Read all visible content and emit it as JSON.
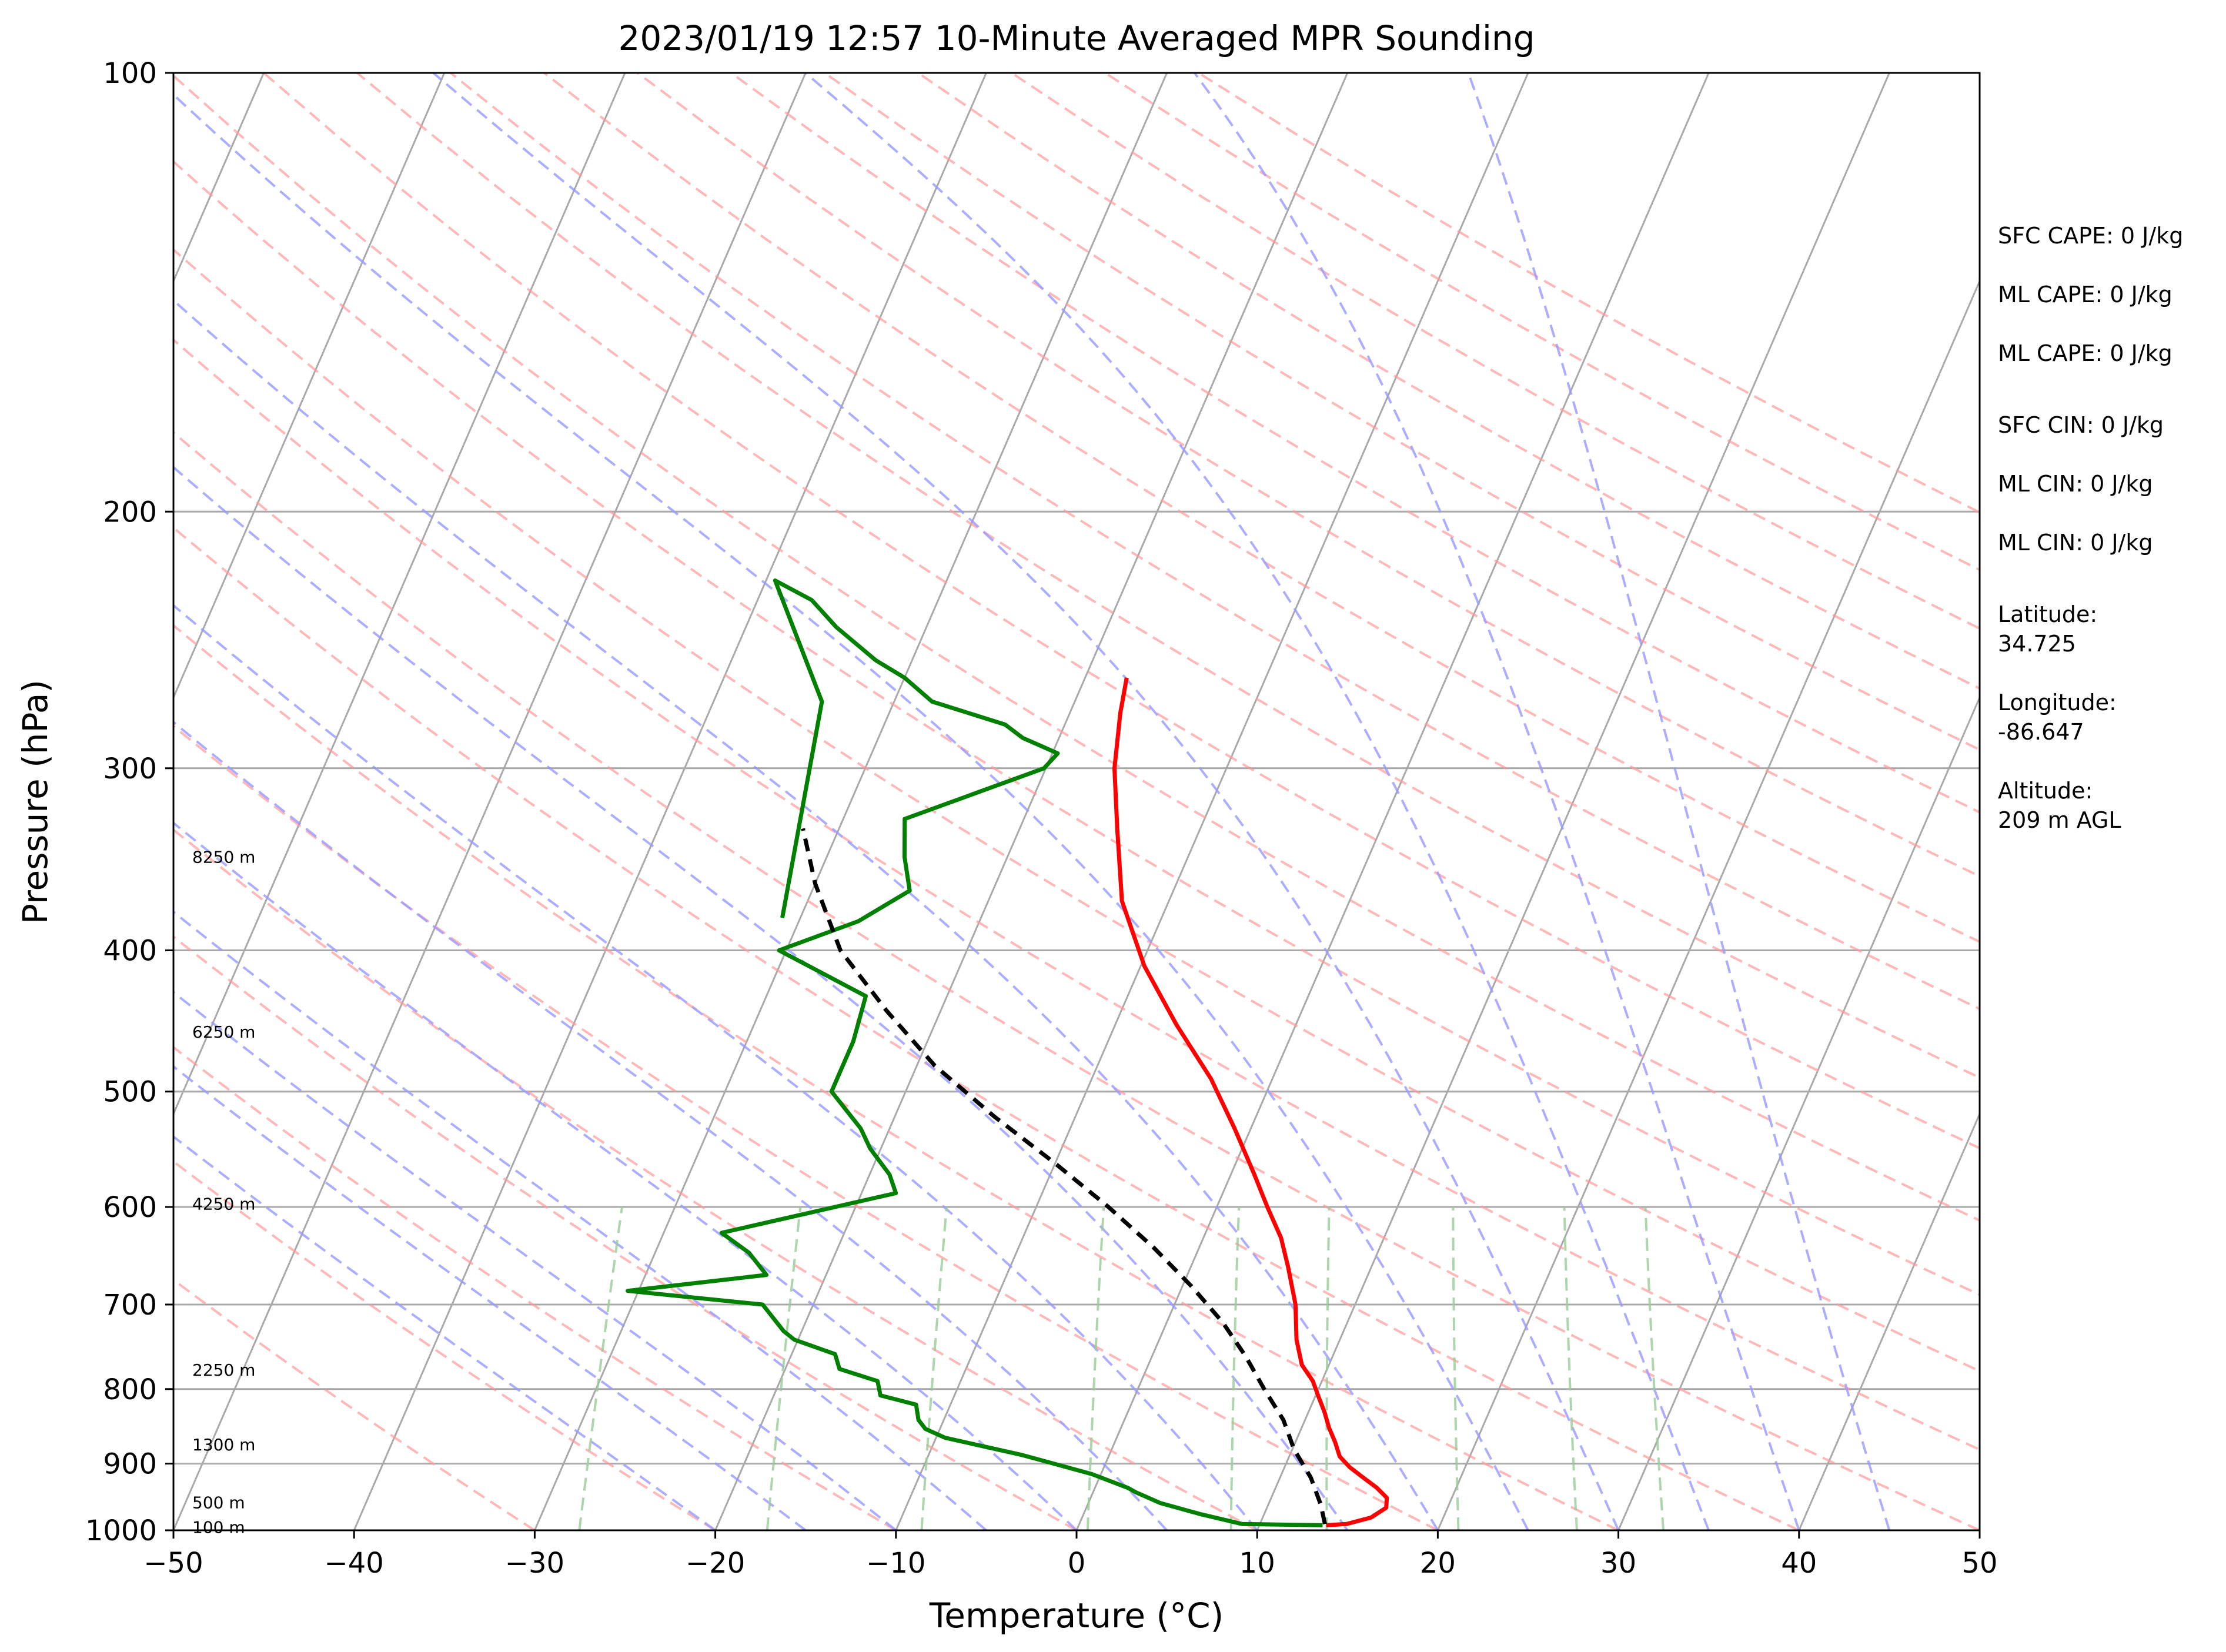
{
  "chart_data": {
    "type": "line",
    "subtype": "skew-t",
    "title": "2023/01/19 12:57 10-Minute Averaged MPR Sounding",
    "xlabel": "Temperature (°C)",
    "ylabel": "Pressure (hPa)",
    "xlim": [
      -50,
      50
    ],
    "ylim": [
      1000,
      100
    ],
    "y_scale": "log",
    "x_ticks": [
      "−50",
      "−40",
      "−30",
      "−20",
      "−10",
      "0",
      "10",
      "20",
      "30",
      "40",
      "50"
    ],
    "x_tick_values": [
      -50,
      -40,
      -30,
      -20,
      -10,
      0,
      10,
      20,
      30,
      40,
      50
    ],
    "y_ticks": [
      "100",
      "200",
      "300",
      "400",
      "500",
      "600",
      "700",
      "800",
      "900",
      "1000"
    ],
    "y_tick_values": [
      100,
      200,
      300,
      400,
      500,
      600,
      700,
      800,
      900,
      1000
    ],
    "grid": true,
    "height_labels": [
      {
        "label": "8250 m",
        "p": 345
      },
      {
        "label": "6250 m",
        "p": 455
      },
      {
        "label": "4250 m",
        "p": 597
      },
      {
        "label": "2250 m",
        "p": 776
      },
      {
        "label": "1300 m",
        "p": 873
      },
      {
        "label": "500 m",
        "p": 957
      },
      {
        "label": "100 m",
        "p": 995
      }
    ],
    "series": [
      {
        "color": "#ff0000",
        "linestyle": "solid",
        "x": [
          13.7,
          14.8,
          16.0,
          16.6,
          16.4,
          15.6,
          14.6,
          13.6,
          12.8,
          12.2,
          11.5,
          10.9,
          10.2,
          9.5,
          8.5,
          7.6,
          6.7,
          5.4,
          4.3,
          2.8,
          1.3,
          -0.9,
          -3.4,
          -6.6,
          -9.8,
          -12.6,
          -14.6,
          -16.2,
          -17.2,
          -17.7
        ],
        "y": [
          992,
          990,
          980,
          965,
          950,
          935,
          920,
          905,
          890,
          870,
          850,
          830,
          810,
          790,
          770,
          740,
          700,
          660,
          630,
          600,
          570,
          530,
          490,
          450,
          410,
          370,
          330,
          300,
          275,
          260
        ]
      },
      {
        "color": "#008000",
        "linestyle": "solid",
        "x": [
          13.5,
          9.0,
          6.5,
          4.0,
          2.4,
          1.8,
          -0.5,
          -4.8,
          -9.5,
          -10.8,
          -11.4,
          -11.9,
          -14.1,
          -14.6,
          -17.0,
          -17.6,
          -20.2,
          -21.0,
          -22.8,
          -30.6,
          -23.3,
          -24.8,
          -26.8,
          -18.1,
          -18.9,
          -20.6,
          -21.6,
          -24.1,
          -24.1,
          -24.5,
          -30.4,
          -26.7,
          -24.6,
          -25.7,
          -26.6,
          -20.1,
          -19.7,
          -22.0,
          -23.3,
          -27.9,
          -30.0,
          -32.0,
          -35.0,
          -37.0,
          -39.5,
          -34.0,
          -31.0
        ],
        "y": [
          992,
          990,
          975,
          958,
          942,
          935,
          915,
          888,
          864,
          852,
          840,
          820,
          808,
          790,
          775,
          757,
          740,
          730,
          700,
          685,
          668,
          645,
          625,
          587,
          570,
          547,
          530,
          500,
          462,
          430,
          400,
          382,
          364,
          345,
          325,
          300,
          293,
          286,
          280,
          270,
          260,
          253,
          240,
          230,
          223,
          270,
          380
        ]
      },
      {
        "color": "#000000",
        "linestyle": "dashed",
        "x": [
          13.6,
          12.9,
          11.7,
          10.1,
          8.8,
          7.0,
          5.2,
          3.1,
          0.5,
          -2.5,
          -6.0,
          -10.0,
          -14.5,
          -19.0,
          -23.0,
          -27.0,
          -30.0,
          -32.0
        ],
        "y": [
          990,
          960,
          920,
          880,
          840,
          800,
          760,
          720,
          680,
          640,
          600,
          560,
          520,
          480,
          440,
          400,
          360,
          330
        ]
      }
    ],
    "stats": [
      "SFC CAPE: 0 J/kg",
      "ML CAPE: 0 J/kg",
      "ML CAPE: 0 J/kg",
      "SFC CIN: 0 J/kg",
      "ML CIN: 0 J/kg",
      "ML CIN: 0 J/kg",
      "Latitude:",
      "34.725",
      "Longitude:",
      "-86.647",
      "Altitude:",
      "209 m AGL"
    ],
    "background_lines": {
      "isotherms_color": "#a9a9a9",
      "dry_adiabats_color": "#ff9999",
      "moist_adiabats_color": "#9999ff",
      "mixing_ratio_color": "#99cc99"
    }
  }
}
